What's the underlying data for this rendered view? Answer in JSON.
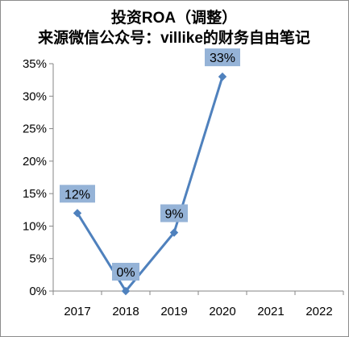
{
  "chart_data": {
    "type": "line",
    "title": "投资ROA（调整）",
    "subtitle": "来源微信公众号：villike的财务自由笔记",
    "categories": [
      "2017",
      "2018",
      "2019",
      "2020",
      "2021",
      "2022"
    ],
    "series": [
      {
        "values": [
          0.12,
          0.0,
          0.09,
          0.33,
          null,
          null
        ]
      }
    ],
    "data_labels": [
      "12%",
      "0%",
      "9%",
      "33%",
      "",
      ""
    ],
    "y_ticks": [
      "0%",
      "5%",
      "10%",
      "15%",
      "20%",
      "25%",
      "30%",
      "35%"
    ],
    "ylim": [
      0,
      0.35
    ],
    "grid": false,
    "legend": "none",
    "colors": {
      "line": "#4f81bd",
      "marker": "#4f81bd",
      "label_box": "#95b3d7",
      "axis": "#868686"
    }
  }
}
